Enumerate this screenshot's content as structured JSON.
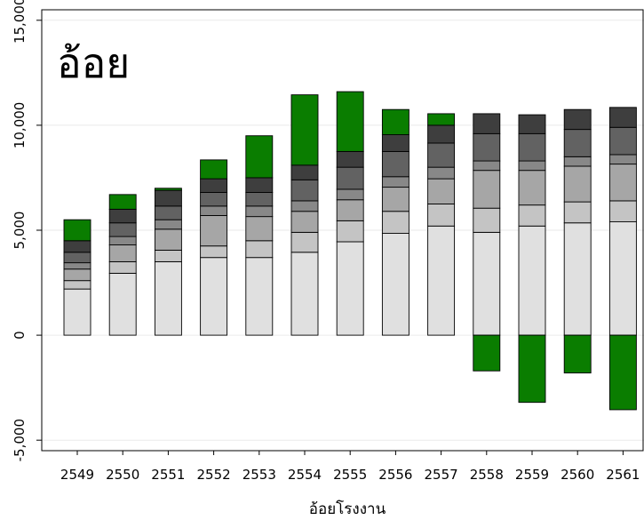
{
  "chart_data": {
    "type": "bar",
    "stacked": true,
    "title": "อ้อย",
    "xlabel": "อ้อยโรงงาน",
    "ylabel": "",
    "ylim": [
      -5500,
      15500
    ],
    "yticks": [
      -5000,
      0,
      5000,
      10000,
      15000
    ],
    "ytick_labels": [
      "-5,000",
      "0",
      "5,000",
      "10,000",
      "15,000"
    ],
    "grid": true,
    "legend": "none",
    "categories": [
      "2549",
      "2550",
      "2551",
      "2552",
      "2553",
      "2554",
      "2555",
      "2556",
      "2557",
      "2558",
      "2559",
      "2560",
      "2561"
    ],
    "series": [
      {
        "color": "#e0e0e0",
        "values": [
          2200,
          2950,
          3500,
          3700,
          3700,
          3950,
          4450,
          4850,
          5200,
          4900,
          5200,
          5350,
          5400
        ]
      },
      {
        "color": "#c4c4c4",
        "values": [
          400,
          550,
          550,
          550,
          800,
          950,
          1000,
          1050,
          1050,
          1150,
          1000,
          1000,
          1000
        ]
      },
      {
        "color": "#a6a6a6",
        "values": [
          550,
          800,
          1000,
          1450,
          1150,
          1000,
          1000,
          1150,
          1200,
          1800,
          1650,
          1700,
          1750
        ]
      },
      {
        "color": "#888888",
        "values": [
          300,
          400,
          450,
          450,
          500,
          500,
          500,
          500,
          550,
          450,
          450,
          450,
          450
        ]
      },
      {
        "color": "#626262",
        "values": [
          500,
          650,
          650,
          650,
          650,
          1000,
          1050,
          1200,
          1150,
          1300,
          1300,
          1300,
          1300
        ]
      },
      {
        "color": "#3e3e3e",
        "values": [
          550,
          650,
          750,
          650,
          700,
          700,
          750,
          800,
          850,
          950,
          900,
          950,
          950
        ]
      },
      {
        "color": "#0a7d00",
        "values": [
          1000,
          700,
          100,
          900,
          2000,
          3350,
          2850,
          1200,
          550,
          -1700,
          -3200,
          -1800,
          -3550
        ]
      }
    ]
  }
}
